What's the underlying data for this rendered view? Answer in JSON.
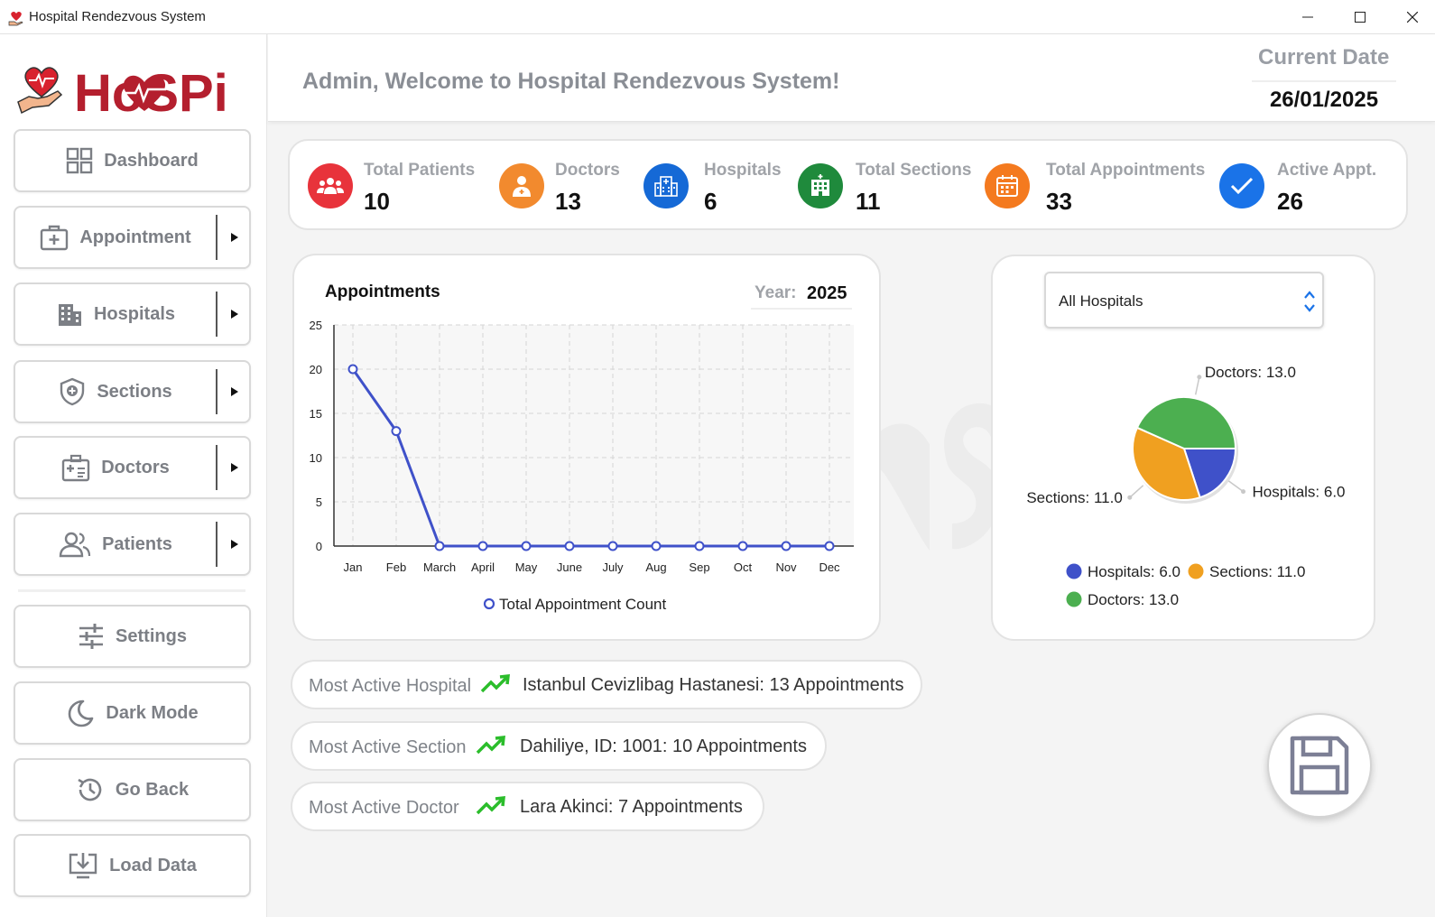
{
  "window": {
    "title": "Hospital Rendezvous System"
  },
  "logo": {
    "text": "HoSPi"
  },
  "sidebar": {
    "items": [
      {
        "label": "Dashboard",
        "icon": "grid-icon"
      },
      {
        "label": "Appointment",
        "icon": "medical-kit-icon",
        "has_submenu": true
      },
      {
        "label": "Hospitals",
        "icon": "building-icon",
        "has_submenu": true
      },
      {
        "label": "Sections",
        "icon": "shield-plus-icon",
        "has_submenu": true
      },
      {
        "label": "Doctors",
        "icon": "doctor-case-icon",
        "has_submenu": true
      },
      {
        "label": "Patients",
        "icon": "users-icon",
        "has_submenu": true
      },
      {
        "label": "Settings",
        "icon": "sliders-icon"
      },
      {
        "label": "Dark Mode",
        "icon": "moon-icon"
      },
      {
        "label": "Go Back",
        "icon": "history-icon"
      },
      {
        "label": "Load Data",
        "icon": "download-icon"
      }
    ]
  },
  "header": {
    "welcome": "Admin, Welcome to Hospital Rendezvous System!",
    "date_label": "Current Date",
    "date_value": "26/01/2025"
  },
  "stats": [
    {
      "label": "Total Patients",
      "value": "10",
      "color": "#e8333b",
      "icon": "patients-icon"
    },
    {
      "label": "Doctors",
      "value": "13",
      "color": "#f28a2e",
      "icon": "doctor-icon"
    },
    {
      "label": "Hospitals",
      "value": "6",
      "color": "#1569d6",
      "icon": "hospital-icon"
    },
    {
      "label": "Total Sections",
      "value": "11",
      "color": "#1f8a3c",
      "icon": "sections-icon"
    },
    {
      "label": "Total Appointments",
      "value": "33",
      "color": "#f47a1f",
      "icon": "calendar-icon"
    },
    {
      "label": "Active Appt.",
      "value": "26",
      "color": "#1a73e8",
      "icon": "check-icon"
    }
  ],
  "appointments_chart": {
    "title": "Appointments",
    "year_label": "Year:",
    "year_value": "2025"
  },
  "pie_panel": {
    "selected_hospital": "All Hospitals"
  },
  "most_active": [
    {
      "label": "Most Active Hospital",
      "value": "Istanbul Cevizlibag Hastanesi: 13 Appointments"
    },
    {
      "label": "Most Active Section",
      "value": "Dahiliye, ID: 1001: 10 Appointments"
    },
    {
      "label": "Most Active Doctor",
      "value": "Lara Akinci: 7 Appointments"
    }
  ],
  "colors": {
    "accent": "#3f51c9",
    "trend": "#2bbd2b",
    "brand": "#b41f2e"
  },
  "chart_data": [
    {
      "type": "line",
      "title": "Appointments",
      "categories": [
        "Jan",
        "Feb",
        "March",
        "April",
        "May",
        "June",
        "July",
        "Aug",
        "Sep",
        "Oct",
        "Nov",
        "Dec"
      ],
      "series": [
        {
          "name": "Total Appointment Count",
          "values": [
            20,
            13,
            0,
            0,
            0,
            0,
            0,
            0,
            0,
            0,
            0,
            0
          ],
          "color": "#3f51c9"
        }
      ],
      "ylim": [
        0,
        25
      ],
      "yticks": [
        0,
        5,
        10,
        15,
        20,
        25
      ],
      "grid": true,
      "legend": "bottom"
    },
    {
      "type": "pie",
      "slices": [
        {
          "name": "Hospitals",
          "value": 6.0,
          "label": "Hospitals: 6.0",
          "color": "#3f51c9"
        },
        {
          "name": "Sections",
          "value": 11.0,
          "label": "Sections: 11.0",
          "color": "#f0a020"
        },
        {
          "name": "Doctors",
          "value": 13.0,
          "label": "Doctors: 13.0",
          "color": "#4caf50"
        }
      ],
      "legend": "bottom"
    }
  ]
}
